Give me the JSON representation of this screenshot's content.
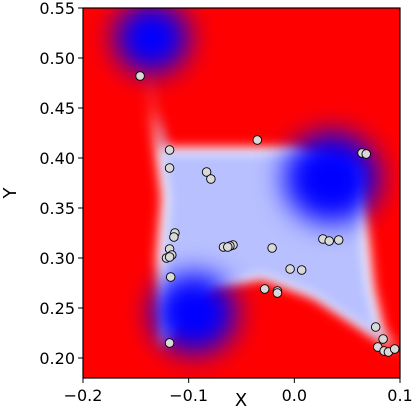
{
  "chart_data": {
    "type": "scatter",
    "xlabel": "X",
    "ylabel": "Y",
    "xlim": [
      -0.2,
      0.1
    ],
    "ylim": [
      0.18,
      0.55
    ],
    "x_ticks": [
      -0.2,
      -0.1,
      0.0,
      0.1
    ],
    "x_tick_labels": [
      "−0.2",
      "−0.1",
      "0.0",
      "0.1"
    ],
    "y_ticks": [
      0.2,
      0.25,
      0.3,
      0.35,
      0.4,
      0.45,
      0.5,
      0.55
    ],
    "y_tick_labels": [
      "0.20",
      "0.25",
      "0.30",
      "0.35",
      "0.40",
      "0.45",
      "0.50",
      "0.55"
    ],
    "grid": false,
    "background_color": "#ff0000",
    "colors": {
      "low": "#0000ff",
      "mid": "#ffffff",
      "high": "#ff0000",
      "point_fill": "#d9d9d9",
      "point_edge": "#000000"
    },
    "heatmap_basins": [
      {
        "x": -0.135,
        "y": 0.52,
        "r": 0.035
      },
      {
        "x": 0.035,
        "y": 0.38,
        "r": 0.045
      },
      {
        "x": -0.095,
        "y": 0.245,
        "r": 0.04
      }
    ],
    "heatmap_path": [
      [
        -0.148,
        0.55
      ],
      [
        -0.142,
        0.5
      ],
      [
        -0.135,
        0.45
      ],
      [
        -0.125,
        0.41
      ],
      [
        -0.06,
        0.41
      ],
      [
        0.0,
        0.41
      ],
      [
        0.06,
        0.39
      ],
      [
        0.07,
        0.32
      ],
      [
        0.075,
        0.27
      ],
      [
        0.085,
        0.225
      ],
      [
        0.1,
        0.205
      ],
      [
        0.02,
        0.26
      ],
      [
        -0.03,
        0.28
      ],
      [
        -0.08,
        0.27
      ],
      [
        -0.115,
        0.23
      ],
      [
        -0.125,
        0.21
      ],
      [
        -0.13,
        0.3
      ],
      [
        -0.125,
        0.36
      ]
    ],
    "points": [
      {
        "x": -0.146,
        "y": 0.482
      },
      {
        "x": -0.035,
        "y": 0.418
      },
      {
        "x": -0.118,
        "y": 0.408
      },
      {
        "x": 0.064,
        "y": 0.405
      },
      {
        "x": 0.068,
        "y": 0.404
      },
      {
        "x": -0.118,
        "y": 0.39
      },
      {
        "x": -0.083,
        "y": 0.386
      },
      {
        "x": -0.079,
        "y": 0.379
      },
      {
        "x": -0.113,
        "y": 0.325
      },
      {
        "x": -0.114,
        "y": 0.321
      },
      {
        "x": -0.058,
        "y": 0.313
      },
      {
        "x": -0.061,
        "y": 0.312
      },
      {
        "x": -0.067,
        "y": 0.311
      },
      {
        "x": -0.063,
        "y": 0.311
      },
      {
        "x": -0.021,
        "y": 0.31
      },
      {
        "x": 0.027,
        "y": 0.319
      },
      {
        "x": 0.033,
        "y": 0.317
      },
      {
        "x": 0.042,
        "y": 0.318
      },
      {
        "x": -0.118,
        "y": 0.309
      },
      {
        "x": -0.116,
        "y": 0.303
      },
      {
        "x": -0.121,
        "y": 0.3
      },
      {
        "x": -0.118,
        "y": 0.301
      },
      {
        "x": -0.117,
        "y": 0.281
      },
      {
        "x": -0.004,
        "y": 0.289
      },
      {
        "x": 0.007,
        "y": 0.288
      },
      {
        "x": -0.028,
        "y": 0.269
      },
      {
        "x": -0.016,
        "y": 0.267
      },
      {
        "x": -0.016,
        "y": 0.265
      },
      {
        "x": -0.118,
        "y": 0.215
      },
      {
        "x": 0.077,
        "y": 0.231
      },
      {
        "x": 0.084,
        "y": 0.219
      },
      {
        "x": 0.079,
        "y": 0.211
      },
      {
        "x": 0.085,
        "y": 0.207
      },
      {
        "x": 0.089,
        "y": 0.206
      },
      {
        "x": 0.095,
        "y": 0.209
      }
    ]
  }
}
